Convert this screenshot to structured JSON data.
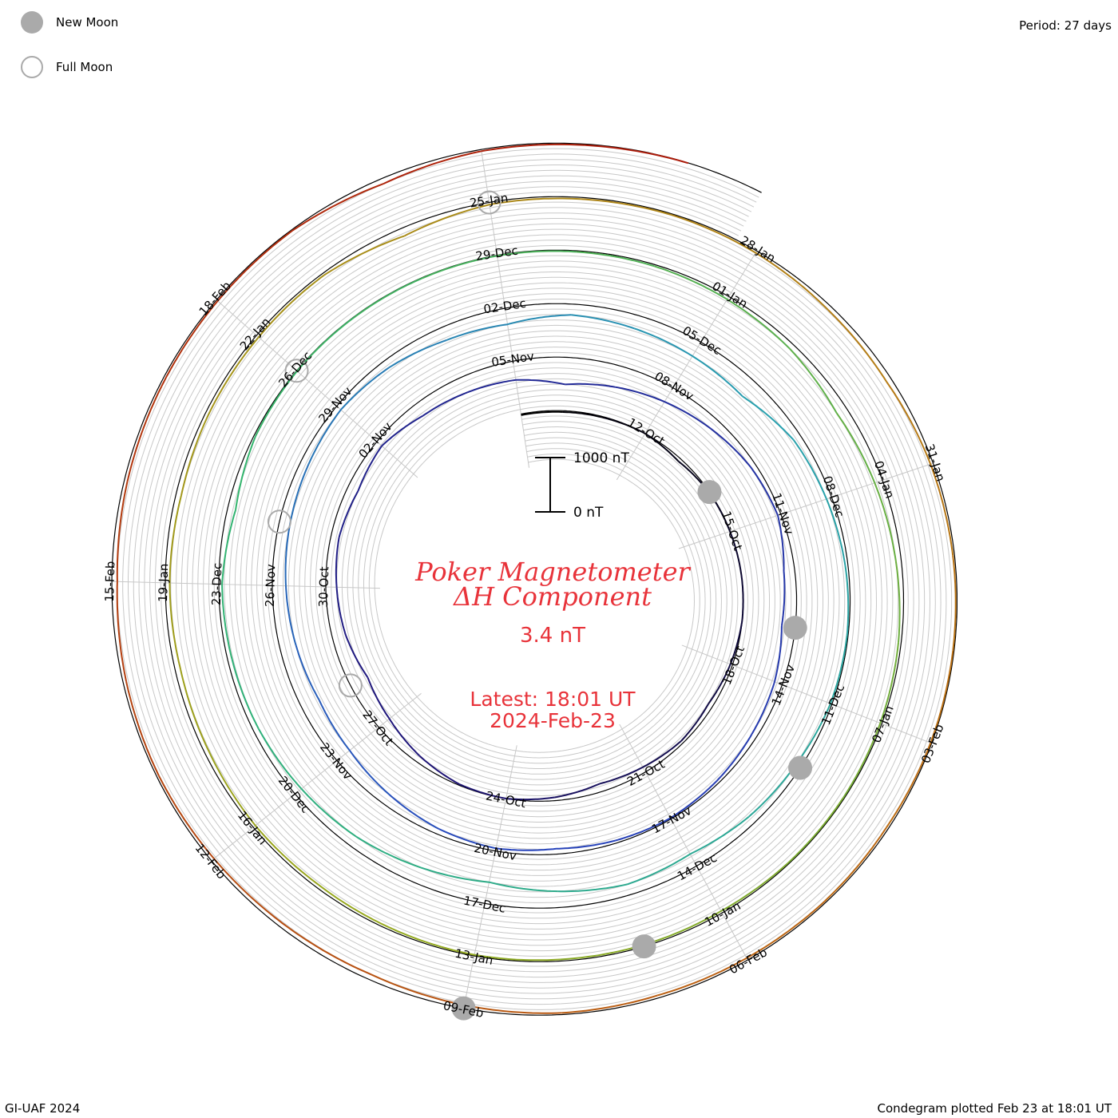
{
  "legend": {
    "new_moon_label": "New Moon",
    "full_moon_label": "Full Moon",
    "new_moon_color": "#aaaaaa",
    "full_moon_color": "#aaaaaa"
  },
  "period_label": "Period: 27 days",
  "credit": "GI-UAF 2024",
  "plotted_note": "Condegram plotted Feb 23 at 18:01 UT",
  "colors": {
    "title": "#e8333a",
    "grid": "#c8c8c8",
    "axis": "#000000"
  },
  "chart_data": {
    "type": "condegram-spiral",
    "title_line1": "Poker Magnetometer",
    "title_line2": "ΔH Component",
    "current_value": "3.4 nT",
    "latest_line1": "Latest: 18:01 UT",
    "latest_line2": "2024-Feb-23",
    "scale_bar": {
      "top_label": "1000 nT",
      "bottom_label": "0 nT",
      "span_nT": 1000
    },
    "period_days": 27,
    "start_date": "2023-10-09",
    "end_date": "2024-02-23T18:01",
    "grid": true,
    "date_labels": [
      {
        "date": "2023-10-12",
        "label": "12-Oct"
      },
      {
        "date": "2023-10-15",
        "label": "15-Oct"
      },
      {
        "date": "2023-10-18",
        "label": "18-Oct"
      },
      {
        "date": "2023-10-21",
        "label": "21-Oct"
      },
      {
        "date": "2023-10-24",
        "label": "24-Oct"
      },
      {
        "date": "2023-10-27",
        "label": "27-Oct"
      },
      {
        "date": "2023-10-30",
        "label": "30-Oct"
      },
      {
        "date": "2023-11-02",
        "label": "02-Nov"
      },
      {
        "date": "2023-11-05",
        "label": "05-Nov"
      },
      {
        "date": "2023-11-08",
        "label": "08-Nov"
      },
      {
        "date": "2023-11-11",
        "label": "11-Nov"
      },
      {
        "date": "2023-11-14",
        "label": "14-Nov"
      },
      {
        "date": "2023-11-17",
        "label": "17-Nov"
      },
      {
        "date": "2023-11-20",
        "label": "20-Nov"
      },
      {
        "date": "2023-11-23",
        "label": "23-Nov"
      },
      {
        "date": "2023-11-26",
        "label": "26-Nov"
      },
      {
        "date": "2023-11-29",
        "label": "29-Nov"
      },
      {
        "date": "2023-12-02",
        "label": "02-Dec"
      },
      {
        "date": "2023-12-05",
        "label": "05-Dec"
      },
      {
        "date": "2023-12-08",
        "label": "08-Dec"
      },
      {
        "date": "2023-12-11",
        "label": "11-Dec"
      },
      {
        "date": "2023-12-14",
        "label": "14-Dec"
      },
      {
        "date": "2023-12-17",
        "label": "17-Dec"
      },
      {
        "date": "2023-12-20",
        "label": "20-Dec"
      },
      {
        "date": "2023-12-23",
        "label": "23-Dec"
      },
      {
        "date": "2023-12-26",
        "label": "26-Dec"
      },
      {
        "date": "2023-12-29",
        "label": "29-Dec"
      },
      {
        "date": "2024-01-01",
        "label": "01-Jan"
      },
      {
        "date": "2024-01-04",
        "label": "04-Jan"
      },
      {
        "date": "2024-01-07",
        "label": "07-Jan"
      },
      {
        "date": "2024-01-10",
        "label": "10-Jan"
      },
      {
        "date": "2024-01-13",
        "label": "13-Jan"
      },
      {
        "date": "2024-01-16",
        "label": "16-Jan"
      },
      {
        "date": "2024-01-19",
        "label": "19-Jan"
      },
      {
        "date": "2024-01-22",
        "label": "22-Jan"
      },
      {
        "date": "2024-01-25",
        "label": "25-Jan"
      },
      {
        "date": "2024-01-28",
        "label": "28-Jan"
      },
      {
        "date": "2024-01-31",
        "label": "31-Jan"
      },
      {
        "date": "2024-02-03",
        "label": "03-Feb"
      },
      {
        "date": "2024-02-06",
        "label": "06-Feb"
      },
      {
        "date": "2024-02-09",
        "label": "09-Feb"
      },
      {
        "date": "2024-02-12",
        "label": "12-Feb"
      },
      {
        "date": "2024-02-15",
        "label": "15-Feb"
      },
      {
        "date": "2024-02-18",
        "label": "18-Feb"
      }
    ],
    "moon_phases": [
      {
        "type": "new",
        "date": "2023-10-14"
      },
      {
        "type": "full",
        "date": "2023-10-28"
      },
      {
        "type": "new",
        "date": "2023-11-13"
      },
      {
        "type": "full",
        "date": "2023-11-27"
      },
      {
        "type": "new",
        "date": "2023-12-12"
      },
      {
        "type": "full",
        "date": "2023-12-26"
      },
      {
        "type": "new",
        "date": "2024-01-11"
      },
      {
        "type": "full",
        "date": "2024-01-25"
      },
      {
        "type": "new",
        "date": "2024-02-09"
      }
    ],
    "series": [
      {
        "values": [
          {
            "date": "2023-10-09",
            "value": 20
          },
          {
            "date": "2023-10-10",
            "value": 25
          },
          {
            "date": "2023-10-11",
            "value": 15
          },
          {
            "date": "2023-10-12",
            "value": 0
          },
          {
            "date": "2023-10-13",
            "value": 60
          },
          {
            "date": "2023-10-14",
            "value": 10
          },
          {
            "date": "2023-10-15",
            "value": 5
          },
          {
            "date": "2023-10-16",
            "value": 0
          },
          {
            "date": "2023-10-17",
            "value": 0
          },
          {
            "date": "2023-10-18",
            "value": 40
          },
          {
            "date": "2023-10-19",
            "value": 90
          },
          {
            "date": "2023-10-20",
            "value": 50
          },
          {
            "date": "2023-10-21",
            "value": 100
          },
          {
            "date": "2023-10-22",
            "value": 150
          },
          {
            "date": "2023-10-23",
            "value": 60
          },
          {
            "date": "2023-10-24",
            "value": 0
          },
          {
            "date": "2023-10-25",
            "value": 20
          },
          {
            "date": "2023-10-26",
            "value": 120
          },
          {
            "date": "2023-10-27",
            "value": 250
          },
          {
            "date": "2023-10-28",
            "value": 350
          },
          {
            "date": "2023-10-29",
            "value": 250
          },
          {
            "date": "2023-10-30",
            "value": 200
          },
          {
            "date": "2023-10-31",
            "value": 150
          },
          {
            "date": "2023-11-01",
            "value": 200
          },
          {
            "date": "2023-11-02",
            "value": 120
          },
          {
            "date": "2023-11-03",
            "value": 250
          },
          {
            "date": "2023-11-04",
            "value": 300
          },
          {
            "date": "2023-11-05",
            "value": 350
          },
          {
            "date": "2023-11-06",
            "value": 500
          },
          {
            "date": "2023-11-07",
            "value": 400
          },
          {
            "date": "2023-11-08",
            "value": 300
          },
          {
            "date": "2023-11-09",
            "value": 200
          },
          {
            "date": "2023-11-10",
            "value": 100
          },
          {
            "date": "2023-11-11",
            "value": 60
          },
          {
            "date": "2023-11-12",
            "value": 200
          },
          {
            "date": "2023-11-13",
            "value": 250
          },
          {
            "date": "2023-11-14",
            "value": 150
          },
          {
            "date": "2023-11-15",
            "value": 100
          },
          {
            "date": "2023-11-16",
            "value": 50
          },
          {
            "date": "2023-11-17",
            "value": 20
          },
          {
            "date": "2023-11-18",
            "value": 50
          },
          {
            "date": "2023-11-19",
            "value": 100
          },
          {
            "date": "2023-11-20",
            "value": 50
          },
          {
            "date": "2023-11-21",
            "value": 100
          },
          {
            "date": "2023-11-22",
            "value": 200
          },
          {
            "date": "2023-11-23",
            "value": 300
          },
          {
            "date": "2023-11-24",
            "value": 350
          },
          {
            "date": "2023-11-25",
            "value": 300
          },
          {
            "date": "2023-11-26",
            "value": 250
          },
          {
            "date": "2023-11-27",
            "value": 200
          },
          {
            "date": "2023-11-28",
            "value": 150
          },
          {
            "date": "2023-11-29",
            "value": 100
          },
          {
            "date": "2023-11-30",
            "value": 150
          },
          {
            "date": "2023-12-01",
            "value": 250
          },
          {
            "date": "2023-12-02",
            "value": 300
          },
          {
            "date": "2023-12-03",
            "value": 200
          },
          {
            "date": "2023-12-04",
            "value": 250
          },
          {
            "date": "2023-12-05",
            "value": 300
          },
          {
            "date": "2023-12-06",
            "value": 350
          },
          {
            "date": "2023-12-07",
            "value": 150
          },
          {
            "date": "2023-12-08",
            "value": 100
          },
          {
            "date": "2023-12-09",
            "value": 50
          },
          {
            "date": "2023-12-10",
            "value": 20
          },
          {
            "date": "2023-12-11",
            "value": 30
          },
          {
            "date": "2023-12-12",
            "value": 100
          },
          {
            "date": "2023-12-13",
            "value": 150
          },
          {
            "date": "2023-12-14",
            "value": 250
          },
          {
            "date": "2023-12-15",
            "value": 200
          },
          {
            "date": "2023-12-16",
            "value": 300
          },
          {
            "date": "2023-12-17",
            "value": 400
          },
          {
            "date": "2023-12-18",
            "value": 300
          },
          {
            "date": "2023-12-19",
            "value": 200
          },
          {
            "date": "2023-12-20",
            "value": 150
          },
          {
            "date": "2023-12-21",
            "value": 100
          },
          {
            "date": "2023-12-22",
            "value": 80
          },
          {
            "date": "2023-12-23",
            "value": 60
          },
          {
            "date": "2023-12-24",
            "value": 150
          },
          {
            "date": "2023-12-25",
            "value": 30
          },
          {
            "date": "2023-12-26",
            "value": 10
          },
          {
            "date": "2023-12-27",
            "value": 10
          },
          {
            "date": "2023-12-28",
            "value": 10
          },
          {
            "date": "2023-12-29",
            "value": 10
          },
          {
            "date": "2023-12-30",
            "value": 20
          },
          {
            "date": "2023-12-31",
            "value": 30
          },
          {
            "date": "2024-01-01",
            "value": 60
          },
          {
            "date": "2024-01-02",
            "value": 100
          },
          {
            "date": "2024-01-03",
            "value": 200
          },
          {
            "date": "2024-01-04",
            "value": 150
          },
          {
            "date": "2024-01-05",
            "value": 100
          },
          {
            "date": "2024-01-06",
            "value": 50
          },
          {
            "date": "2024-01-07",
            "value": 30
          },
          {
            "date": "2024-01-08",
            "value": 20
          },
          {
            "date": "2024-01-09",
            "value": 20
          },
          {
            "date": "2024-01-10",
            "value": 40
          },
          {
            "date": "2024-01-11",
            "value": 30
          },
          {
            "date": "2024-01-12",
            "value": 30
          },
          {
            "date": "2024-01-13",
            "value": 20
          },
          {
            "date": "2024-01-14",
            "value": 40
          },
          {
            "date": "2024-01-15",
            "value": 60
          },
          {
            "date": "2024-01-16",
            "value": 50
          },
          {
            "date": "2024-01-17",
            "value": 80
          },
          {
            "date": "2024-01-18",
            "value": 100
          },
          {
            "date": "2024-01-19",
            "value": 80
          },
          {
            "date": "2024-01-20",
            "value": 100
          },
          {
            "date": "2024-01-21",
            "value": 60
          },
          {
            "date": "2024-01-22",
            "value": 50
          },
          {
            "date": "2024-01-23",
            "value": 40
          },
          {
            "date": "2024-01-24",
            "value": 150
          },
          {
            "date": "2024-01-25",
            "value": 40
          },
          {
            "date": "2024-01-26",
            "value": 30
          },
          {
            "date": "2024-01-27",
            "value": 20
          },
          {
            "date": "2024-01-28",
            "value": 40
          },
          {
            "date": "2024-01-29",
            "value": 80
          },
          {
            "date": "2024-01-30",
            "value": 100
          },
          {
            "date": "2024-01-31",
            "value": 50
          },
          {
            "date": "2024-02-01",
            "value": 30
          },
          {
            "date": "2024-02-02",
            "value": 20
          },
          {
            "date": "2024-02-03",
            "value": 20
          },
          {
            "date": "2024-02-04",
            "value": 40
          },
          {
            "date": "2024-02-05",
            "value": 30
          },
          {
            "date": "2024-02-06",
            "value": 40
          },
          {
            "date": "2024-02-07",
            "value": 50
          },
          {
            "date": "2024-02-08",
            "value": 30
          },
          {
            "date": "2024-02-09",
            "value": 60
          },
          {
            "date": "2024-02-10",
            "value": 100
          },
          {
            "date": "2024-02-11",
            "value": 80
          },
          {
            "date": "2024-02-12",
            "value": 60
          },
          {
            "date": "2024-02-13",
            "value": 40
          },
          {
            "date": "2024-02-14",
            "value": 60
          },
          {
            "date": "2024-02-15",
            "value": 100
          },
          {
            "date": "2024-02-16",
            "value": 60
          },
          {
            "date": "2024-02-17",
            "value": 40
          },
          {
            "date": "2024-02-18",
            "value": 30
          },
          {
            "date": "2024-02-19",
            "value": 20
          },
          {
            "date": "2024-02-20",
            "value": 100
          },
          {
            "date": "2024-02-21",
            "value": 30
          },
          {
            "date": "2024-02-22",
            "value": 20
          },
          {
            "date": "2024-02-23",
            "value": 3.4
          }
        ]
      }
    ]
  }
}
